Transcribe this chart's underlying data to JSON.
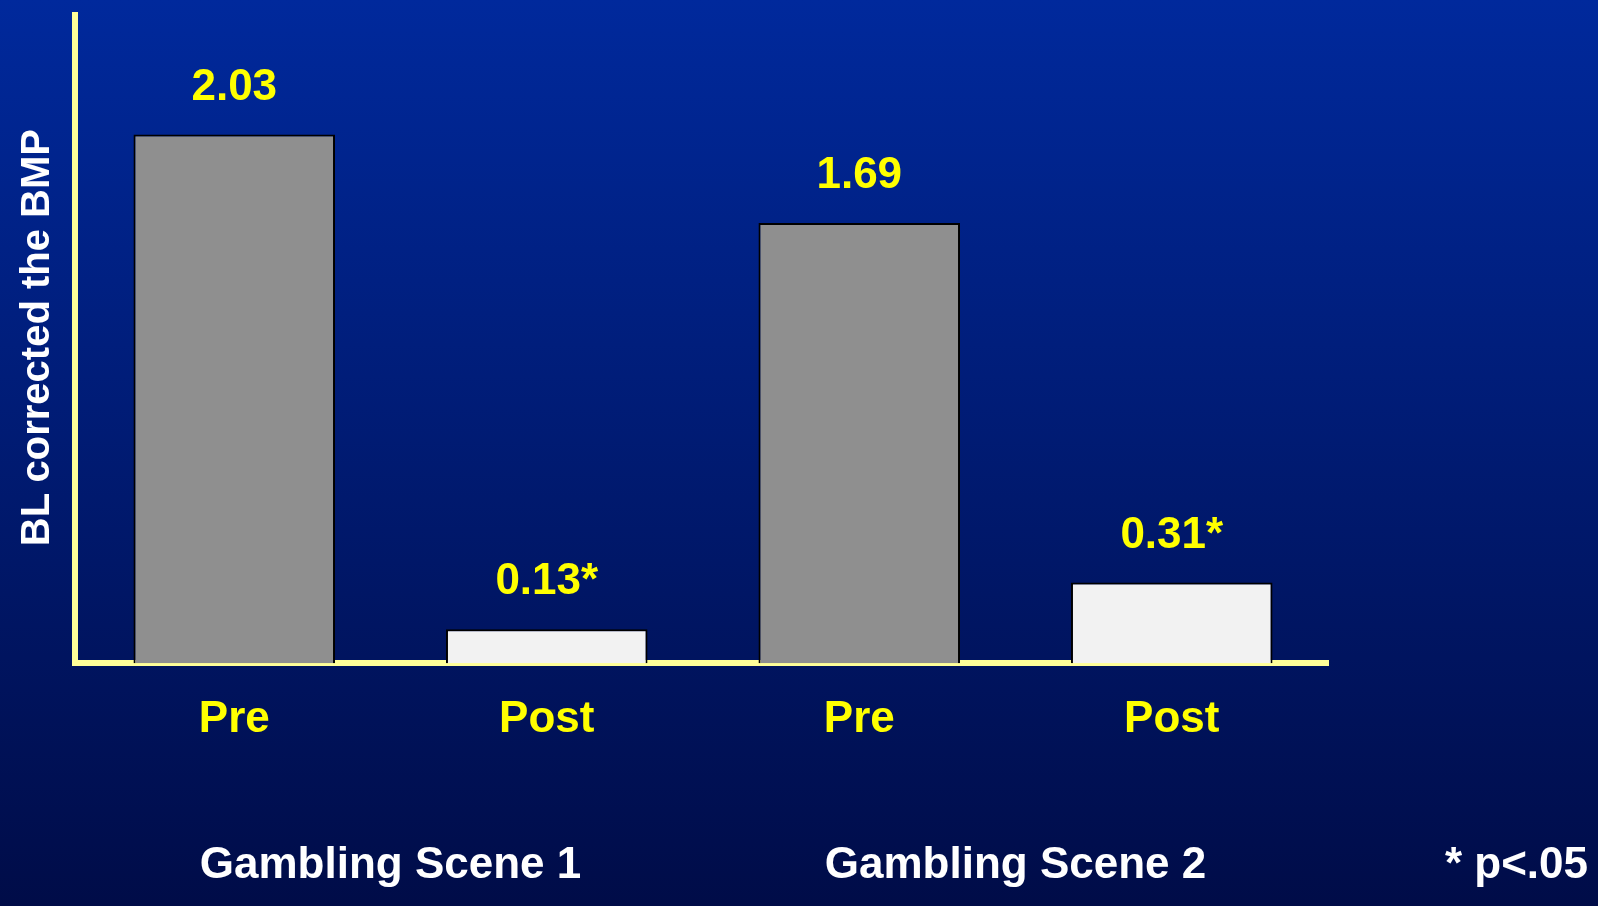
{
  "chart_data": {
    "type": "bar",
    "ylabel": "BL corrected the BMP",
    "categories": [
      "Pre",
      "Post",
      "Pre",
      "Post"
    ],
    "values": [
      2.03,
      0.13,
      1.69,
      0.31
    ],
    "colors": [
      "#8f8f8f",
      "#f2f2f2",
      "#8f8f8f",
      "#f2f2f2"
    ],
    "value_labels": [
      "2.03",
      "0.13*",
      "1.69",
      "0.31*"
    ],
    "annotations": [
      "Gambling Scene 1",
      "Gambling Scene 2",
      "* p<.05"
    ],
    "tick_labels": "x",
    "grid": false,
    "legend": false
  }
}
